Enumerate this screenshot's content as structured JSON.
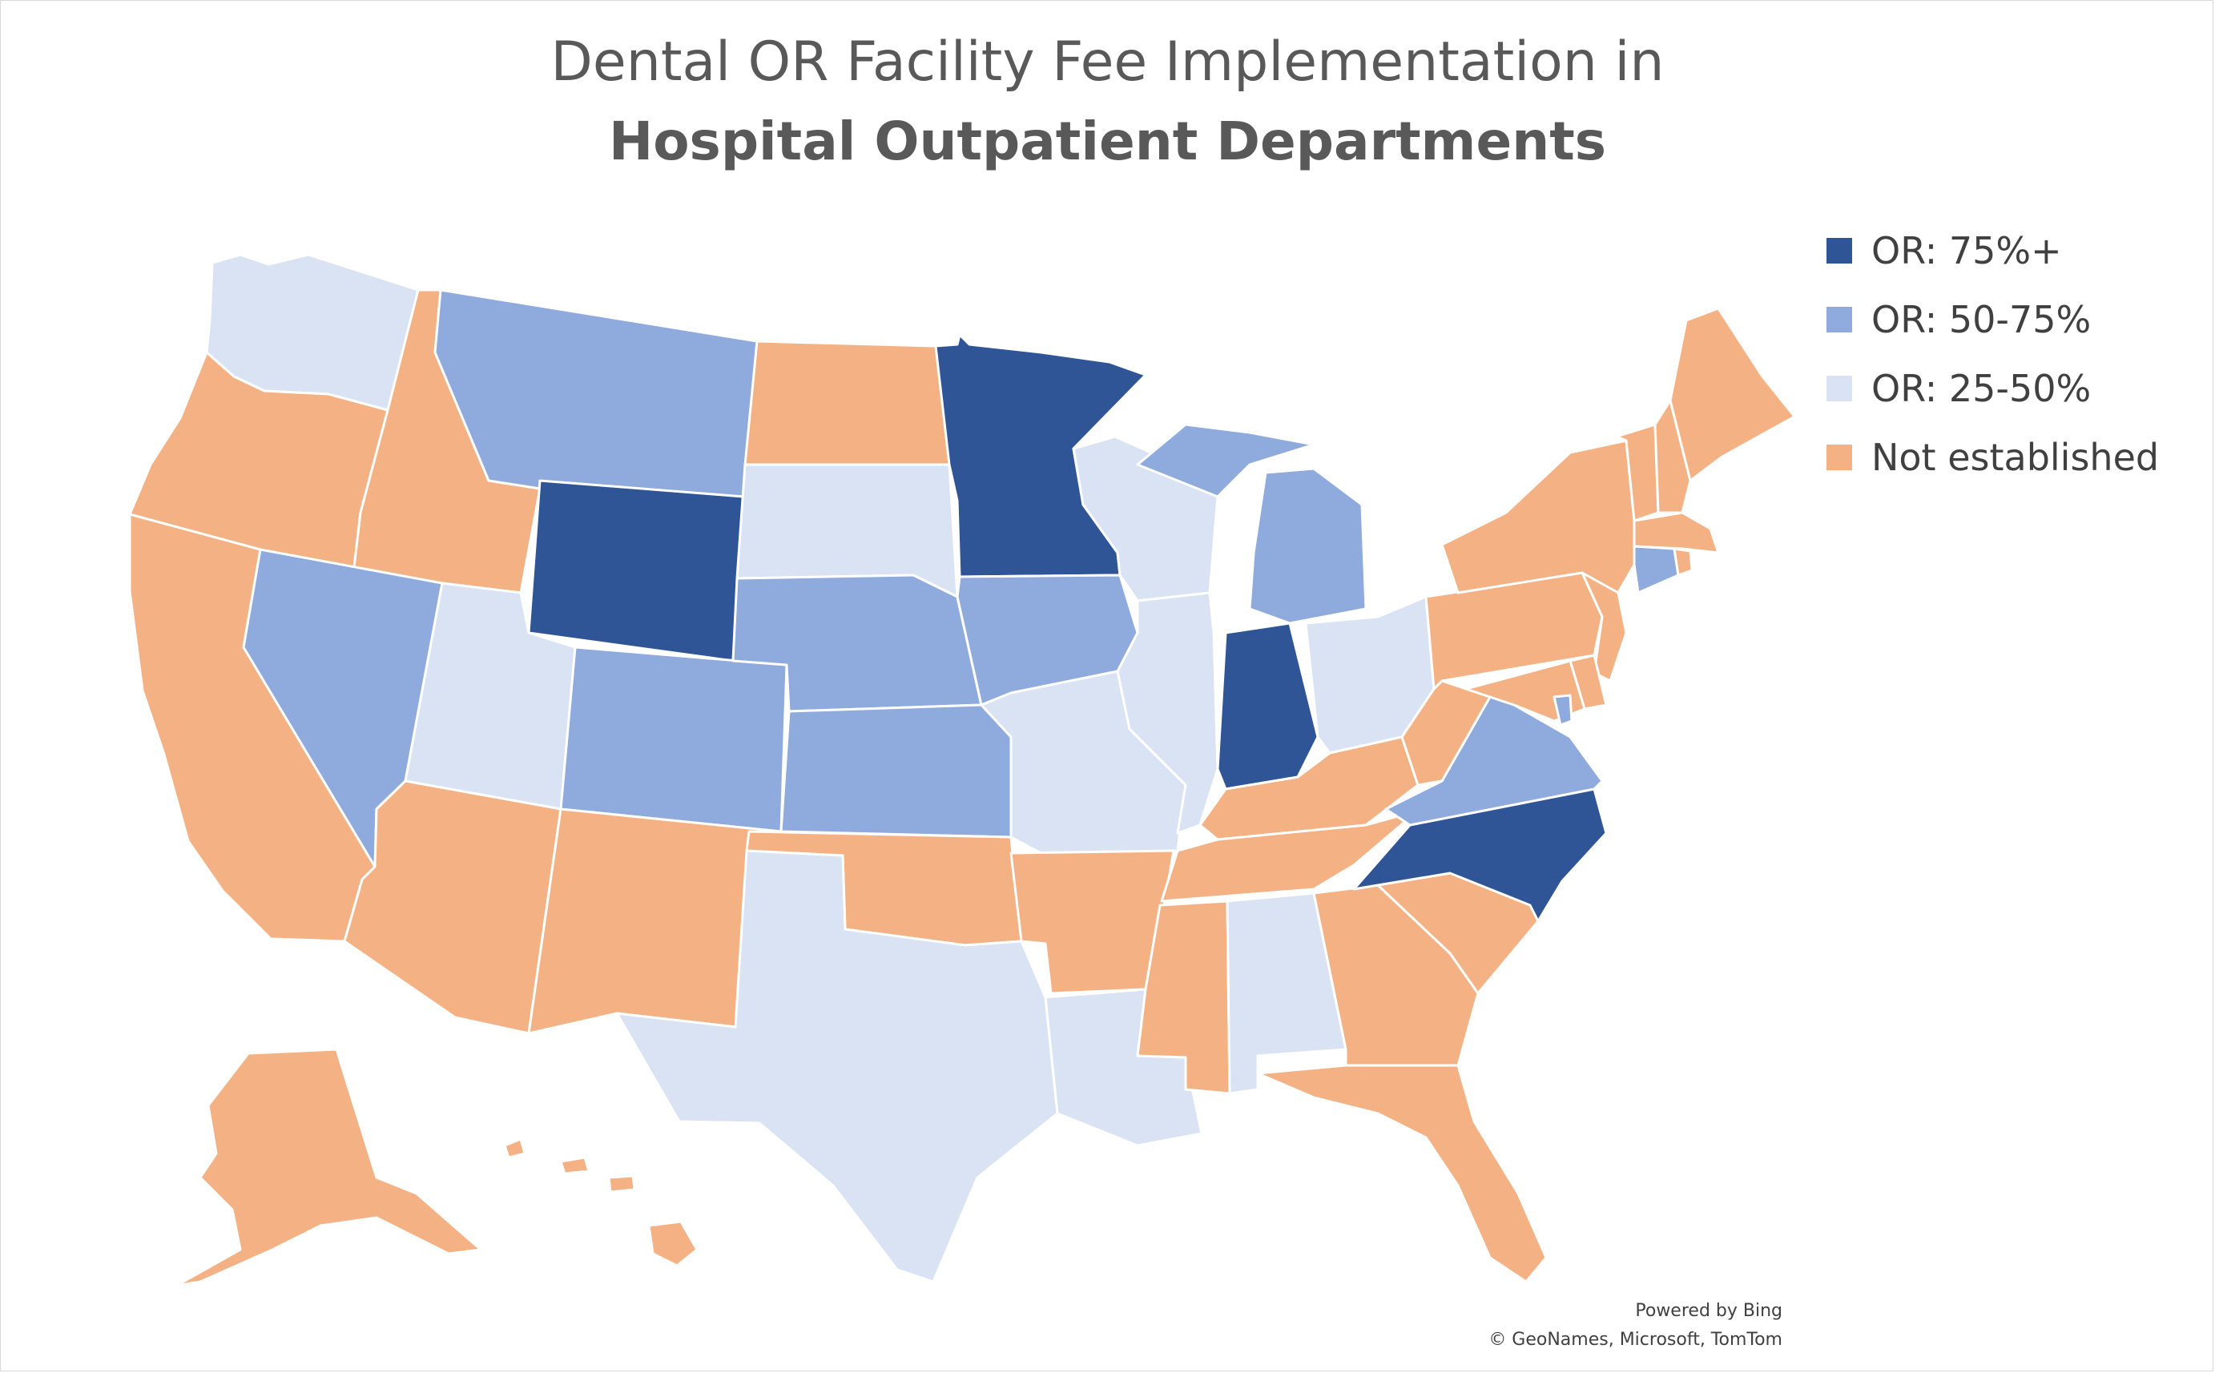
{
  "title": {
    "line1": "Dental OR Facility Fee Implementation in",
    "line2": "Hospital Outpatient Departments"
  },
  "legend": [
    {
      "key": "or75",
      "label": "OR: 75%+",
      "color": "#2f5597"
    },
    {
      "key": "or50",
      "label": "OR: 50-75%",
      "color": "#8faadc"
    },
    {
      "key": "or25",
      "label": "OR: 25-50%",
      "color": "#dae3f3"
    },
    {
      "key": "none",
      "label": "Not established",
      "color": "#f4b183"
    }
  ],
  "states": {
    "WA": "or25",
    "OR": "none",
    "CA": "none",
    "ID": "none",
    "NV": "or50",
    "MT": "or50",
    "WY": "or75",
    "UT": "or25",
    "AZ": "none",
    "CO": "or50",
    "NM": "none",
    "ND": "none",
    "SD": "or25",
    "NE": "or50",
    "KS": "or50",
    "OK": "none",
    "TX": "or25",
    "MN": "or75",
    "IA": "or50",
    "MO": "or25",
    "AR": "none",
    "LA": "or25",
    "WI": "or25",
    "IL": "or25",
    "MI": "or50",
    "IN": "or75",
    "OH": "or25",
    "KY": "none",
    "TN": "none",
    "MS": "none",
    "AL": "or25",
    "GA": "none",
    "FL": "none",
    "SC": "none",
    "NC": "or75",
    "VA": "or50",
    "WV": "none",
    "PA": "none",
    "NY": "none",
    "VT": "none",
    "NH": "none",
    "ME": "none",
    "MA": "none",
    "RI": "none",
    "CT": "or50",
    "NJ": "none",
    "DE": "none",
    "MD": "none",
    "DC": "or50",
    "AK": "none",
    "HI": "none"
  },
  "credit": {
    "line1": "Powered by Bing",
    "line2": "© GeoNames, Microsoft, TomTom"
  }
}
